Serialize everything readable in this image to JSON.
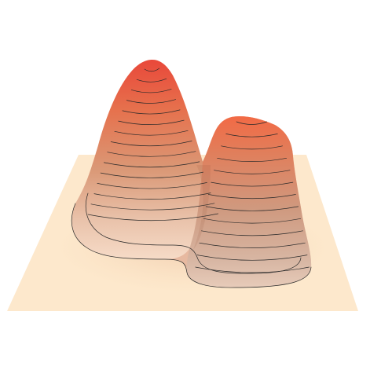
{
  "figure": {
    "kind": "3d-surface-contour",
    "peaks": 2,
    "contour_lines": true
  },
  "colors": {
    "background": "#ffffff",
    "plane": "#fde8cc",
    "plane_shade": "#f6d7b4",
    "peak_base": "#d6b6a2",
    "peak_mid": "#e58c62",
    "peak_top": "#e9483a",
    "contour_stroke": "#2a2a2a"
  },
  "icons": []
}
